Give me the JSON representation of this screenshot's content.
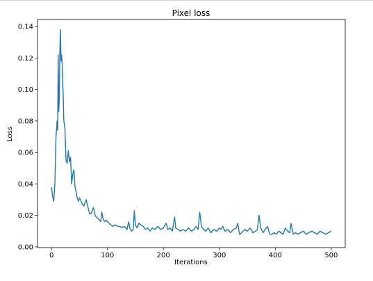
{
  "chart_data": {
    "type": "line",
    "title": "Pixel loss",
    "xlabel": "Iterations",
    "ylabel": "Loss",
    "xlim": [
      -25,
      525
    ],
    "ylim": [
      -0.0005,
      0.1445
    ],
    "xticks": [
      0,
      100,
      200,
      300,
      400,
      500
    ],
    "yticks": [
      0.0,
      0.02,
      0.04,
      0.06,
      0.08,
      0.1,
      0.12,
      0.14
    ],
    "ytick_labels": [
      "0.00",
      "0.02",
      "0.04",
      "0.06",
      "0.08",
      "0.10",
      "0.12",
      "0.14"
    ],
    "xtick_labels": [
      "0",
      "100",
      "200",
      "300",
      "400",
      "500"
    ],
    "grid": false,
    "line_color": "#1f77b4",
    "series": [
      {
        "x": [
          0,
          2,
          4,
          6,
          8,
          10,
          11,
          12,
          13,
          14,
          15,
          16,
          17,
          18,
          19,
          20,
          21,
          22,
          23,
          24,
          26,
          28,
          30,
          32,
          34,
          36,
          38,
          40,
          42,
          44,
          46,
          48,
          50,
          52,
          55,
          58,
          60,
          62,
          64,
          66,
          68,
          70,
          72,
          75,
          78,
          80,
          83,
          86,
          88,
          90,
          92,
          95,
          98,
          100,
          103,
          106,
          110,
          114,
          118,
          122,
          126,
          130,
          135,
          138,
          140,
          143,
          146,
          148,
          150,
          153,
          156,
          160,
          164,
          168,
          172,
          176,
          180,
          185,
          190,
          195,
          200,
          205,
          208,
          212,
          216,
          220,
          222,
          226,
          230,
          235,
          240,
          245,
          250,
          255,
          258,
          262,
          265,
          268,
          272,
          276,
          280,
          285,
          290,
          295,
          300,
          303,
          306,
          310,
          315,
          320,
          325,
          330,
          333,
          336,
          340,
          345,
          350,
          355,
          360,
          365,
          368,
          371,
          374,
          378,
          382,
          386,
          390,
          394,
          398,
          402,
          406,
          410,
          414,
          418,
          422,
          426,
          428,
          432,
          436,
          440,
          445,
          450,
          455,
          460,
          465,
          470,
          475,
          480,
          485,
          490,
          495,
          500
        ],
        "y": [
          0.038,
          0.032,
          0.029,
          0.04,
          0.07,
          0.08,
          0.074,
          0.122,
          0.086,
          0.095,
          0.125,
          0.138,
          0.118,
          0.122,
          0.117,
          0.105,
          0.095,
          0.08,
          0.078,
          0.075,
          0.055,
          0.053,
          0.061,
          0.054,
          0.057,
          0.04,
          0.046,
          0.049,
          0.038,
          0.035,
          0.031,
          0.029,
          0.031,
          0.03,
          0.027,
          0.026,
          0.028,
          0.03,
          0.027,
          0.024,
          0.021,
          0.021,
          0.022,
          0.025,
          0.02,
          0.019,
          0.018,
          0.017,
          0.016,
          0.022,
          0.018,
          0.016,
          0.017,
          0.016,
          0.015,
          0.014,
          0.013,
          0.014,
          0.013,
          0.013,
          0.012,
          0.013,
          0.011,
          0.016,
          0.012,
          0.01,
          0.011,
          0.023,
          0.014,
          0.012,
          0.015,
          0.014,
          0.013,
          0.011,
          0.012,
          0.01,
          0.012,
          0.011,
          0.013,
          0.011,
          0.012,
          0.015,
          0.011,
          0.012,
          0.01,
          0.019,
          0.012,
          0.011,
          0.01,
          0.011,
          0.01,
          0.012,
          0.01,
          0.011,
          0.013,
          0.011,
          0.022,
          0.013,
          0.011,
          0.01,
          0.012,
          0.009,
          0.011,
          0.01,
          0.012,
          0.011,
          0.013,
          0.01,
          0.011,
          0.009,
          0.011,
          0.012,
          0.015,
          0.008,
          0.009,
          0.011,
          0.01,
          0.012,
          0.009,
          0.01,
          0.011,
          0.02,
          0.012,
          0.009,
          0.011,
          0.013,
          0.008,
          0.008,
          0.009,
          0.008,
          0.01,
          0.009,
          0.008,
          0.012,
          0.01,
          0.009,
          0.015,
          0.008,
          0.009,
          0.008,
          0.009,
          0.01,
          0.008,
          0.009,
          0.01,
          0.009,
          0.008,
          0.01,
          0.009,
          0.008,
          0.009,
          0.01
        ]
      }
    ]
  }
}
